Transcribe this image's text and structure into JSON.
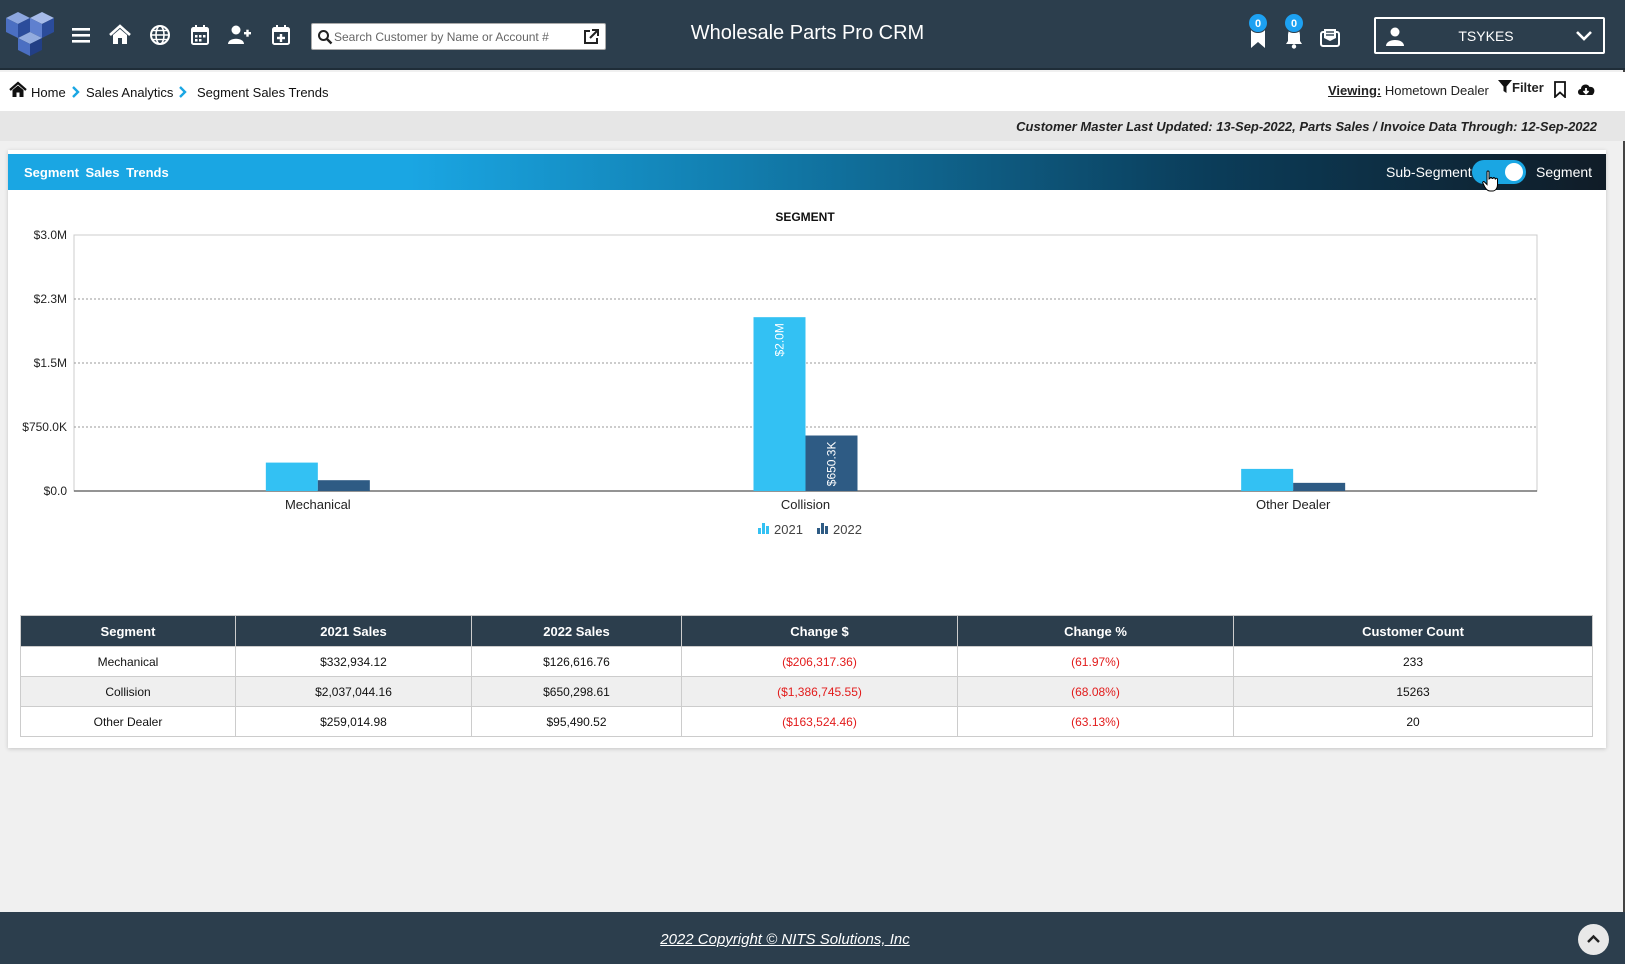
{
  "app": {
    "title": "Wholesale Parts Pro CRM",
    "search_placeholder": "Search Customer by Name or Account #",
    "badges": {
      "bookmarks": "0",
      "notifications": "0"
    },
    "user": "TSYKES"
  },
  "breadcrumb": {
    "home": "Home",
    "analytics": "Sales Analytics",
    "current": "Segment Sales Trends",
    "viewing_label": "Viewing:",
    "viewing_value": "Hometown Dealer",
    "filter_label": "Filter"
  },
  "notice": "Customer Master Last Updated: 13-Sep-2022, Parts Sales / Invoice Data Through: 12-Sep-2022",
  "panel": {
    "title": "Segment Sales Trends",
    "toggle_left": "Sub-Segment",
    "toggle_right": "Segment"
  },
  "chart_data": {
    "type": "bar",
    "title": "SEGMENT",
    "categories": [
      "Mechanical",
      "Collision",
      "Other Dealer"
    ],
    "series": [
      {
        "name": "2021",
        "values": [
          332934.12,
          2037044.16,
          259014.98
        ],
        "color": "#33c1f3"
      },
      {
        "name": "2022",
        "values": [
          126616.76,
          650298.61,
          95490.52
        ],
        "color": "#2e5b84"
      }
    ],
    "y_ticks": [
      "$0.0",
      "$750.0K",
      "$1.5M",
      "$2.3M",
      "$3.0M"
    ],
    "ylim": [
      0,
      3000000
    ],
    "data_labels": {
      "Collision-2021": "$2.0M",
      "Collision-2022": "$650.3K"
    },
    "legend": "bottom-center",
    "grid": true
  },
  "table": {
    "headers": [
      "Segment",
      "2021 Sales",
      "2022 Sales",
      "Change $",
      "Change %",
      "Customer Count"
    ],
    "rows": [
      [
        "Mechanical",
        "$332,934.12",
        "$126,616.76",
        "($206,317.36)",
        "(61.97%)",
        "233"
      ],
      [
        "Collision",
        "$2,037,044.16",
        "$650,298.61",
        "($1,386,745.55)",
        "(68.08%)",
        "15263"
      ],
      [
        "Other Dealer",
        "$259,014.98",
        "$95,490.52",
        "($163,524.46)",
        "(63.13%)",
        "20"
      ]
    ]
  },
  "footer": "2022 Copyright © NITS Solutions, Inc"
}
